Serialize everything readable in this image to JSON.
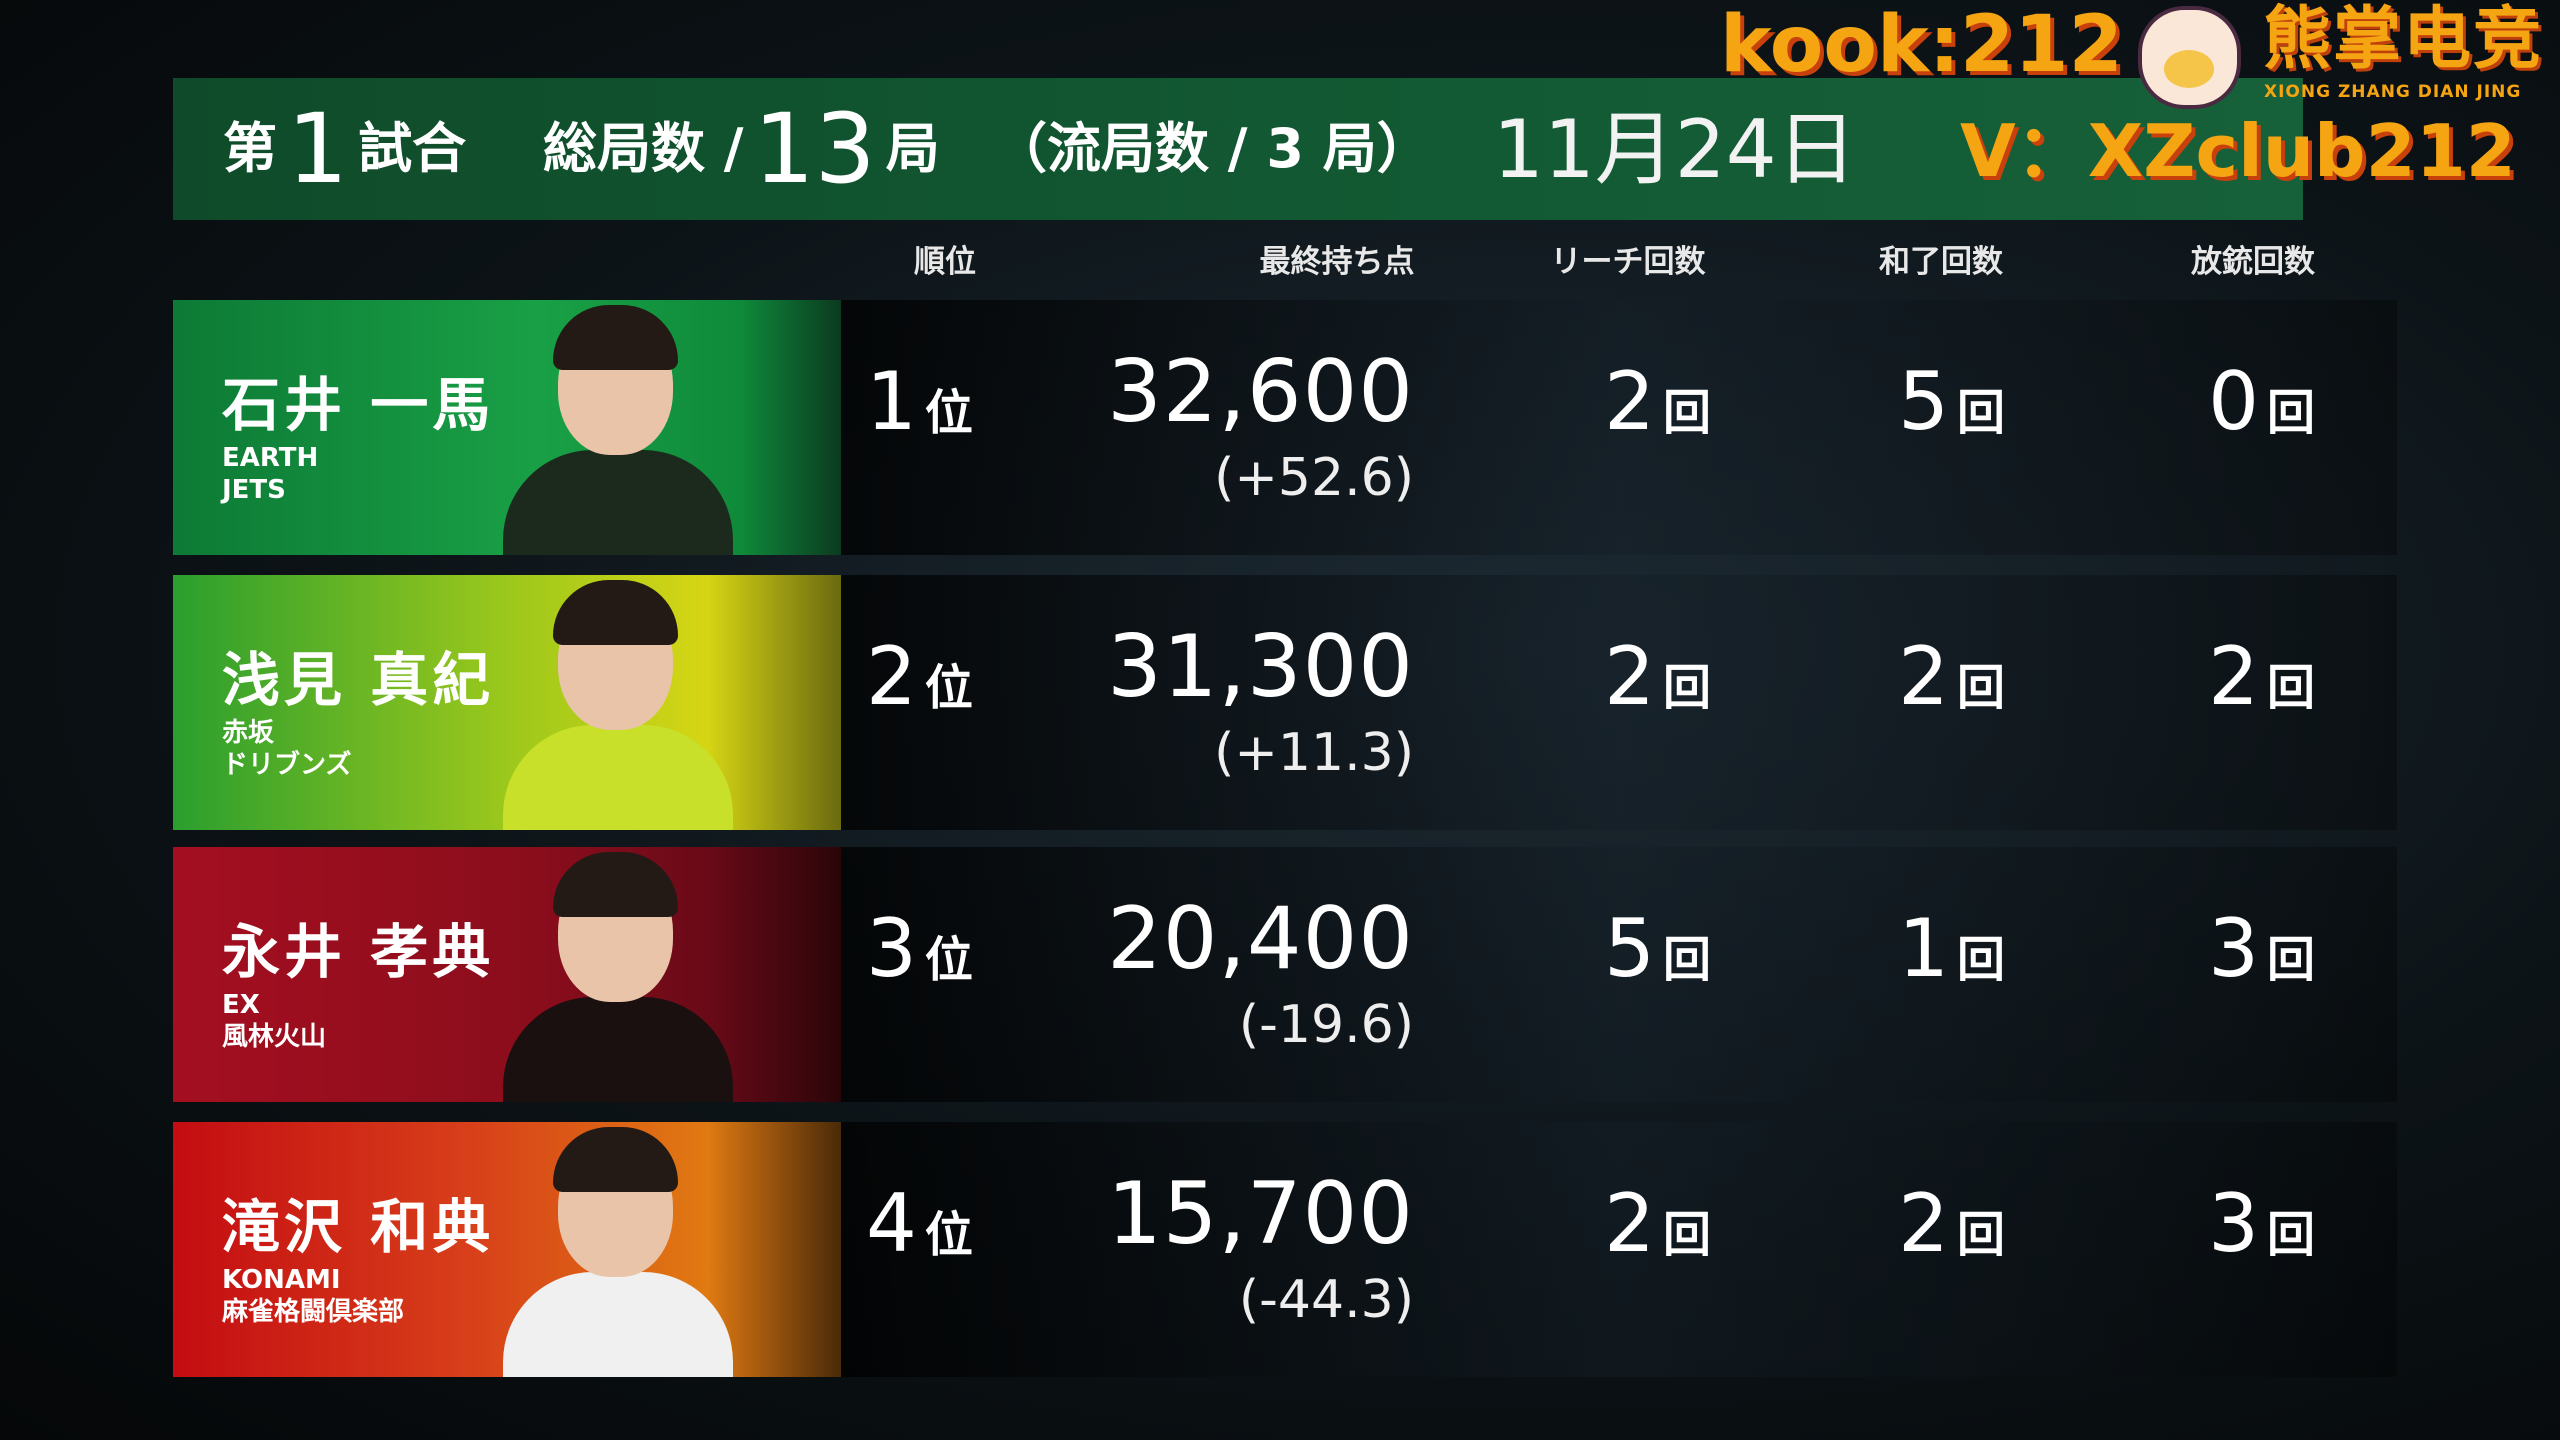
{
  "header": {
    "prefix": "第",
    "match_no": "1",
    "match_label": "試合",
    "total_label": "総局数 /",
    "total_rounds": "13",
    "total_unit": "局",
    "draw_text": "（流局数 / 3 局）",
    "date": "11月24日"
  },
  "columns": {
    "rank": "順位",
    "final_points": "最終持ち点",
    "riichi": "リーチ回数",
    "win": "和了回数",
    "dealin": "放銃回数"
  },
  "units": {
    "rank": "位",
    "count": "回"
  },
  "players": [
    {
      "name": "石井 一馬",
      "team": [
        "EARTH",
        "JETS"
      ],
      "rank": "1",
      "score": "32,600",
      "diff": "(+52.6)",
      "riichi": "2",
      "win": "5",
      "dealin": "0",
      "color": "#139a40"
    },
    {
      "name": "浅見 真紀",
      "team": [
        "赤坂",
        "ドリブンズ"
      ],
      "rank": "2",
      "score": "31,300",
      "diff": "(+11.3)",
      "riichi": "2",
      "win": "2",
      "dealin": "2",
      "color": "#b8cc18"
    },
    {
      "name": "永井 孝典",
      "team": [
        "EX",
        "風林火山"
      ],
      "rank": "3",
      "score": "20,400",
      "diff": "(-19.6)",
      "riichi": "5",
      "win": "1",
      "dealin": "3",
      "color": "#9a0f1e"
    },
    {
      "name": "滝沢 和典",
      "team": [
        "KONAMI",
        "麻雀格闘倶楽部"
      ],
      "rank": "4",
      "score": "15,700",
      "diff": "(-44.3)",
      "riichi": "2",
      "win": "2",
      "dealin": "3",
      "color": "#d8401a"
    }
  ],
  "watermark": {
    "brand_cn": "熊掌电竞",
    "brand_pinyin": "XIONG ZHANG DIAN JING",
    "line1": "kook:212",
    "line2": "V：XZclub212",
    "color": "#f5a412"
  }
}
